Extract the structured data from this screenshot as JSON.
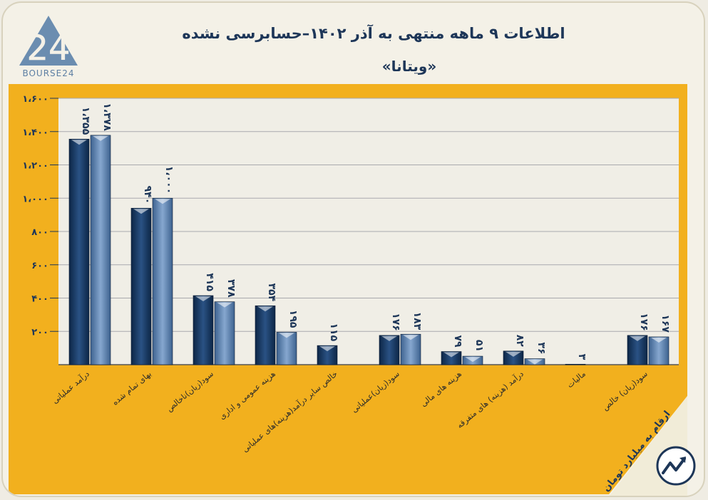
{
  "header": {
    "title": "اطلاعات ۹ ماهه منتهی به آذر ۱۴۰۲–حسابرسی نشده",
    "subtitle": "«ویتانا»"
  },
  "brand": {
    "logo_digits": "24",
    "logo_text": "BOURSE24"
  },
  "footer": {
    "note": "ارقام به میلیارد تومان"
  },
  "colors": {
    "frame": "#f2b01e",
    "plot_bg": "#f0eee6",
    "series_dark": "#1c3c66",
    "series_light": "#6a8fbd",
    "title": "#1d3658",
    "logo": "#5d7fa3"
  },
  "chart_data": {
    "type": "bar",
    "ylim": [
      0,
      1600
    ],
    "yticks": [
      200,
      400,
      600,
      800,
      1000,
      1200,
      1400,
      1600
    ],
    "ytick_labels": [
      "۲۰۰",
      "۴۰۰",
      "۶۰۰",
      "۸۰۰",
      "۱،۰۰۰",
      "۱،۲۰۰",
      "۱،۴۰۰",
      "۱،۶۰۰"
    ],
    "grid": true,
    "categories": [
      "درآمد عملیاتی",
      "بهای تمام شده",
      "سود(زیان)ناخالص",
      "هزینه عمومی و اداری",
      "خالص سایر درآمد(هزینه)های عملیاتی",
      "سود(زیان)عملیاتی",
      "هزینه های مالی",
      "درآمد (هزینه) های متفرقه",
      "مالیات",
      "سود(زیان) خالص"
    ],
    "series": [
      {
        "values": [
          1355,
          940,
          415,
          354,
          115,
          176,
          79,
          82,
          3,
          176
        ],
        "labels": [
          "۱،۳۵۵",
          "۹۴۰",
          "۴۱۵",
          "۳۵۴",
          "۱۱۵",
          "۱۷۶",
          "۷۹",
          "۸۲",
          "۳",
          "۱۷۶"
        ]
      },
      {
        "values": [
          1378,
          1000,
          378,
          195,
          null,
          183,
          51,
          36,
          null,
          167
        ],
        "labels": [
          "۱،۳۷۸",
          "۱،۰۰۰",
          "۳۷۸",
          "۱۹۵",
          null,
          "۱۸۳",
          "۵۱",
          "۳۶",
          null,
          "۱۶۷"
        ]
      }
    ]
  }
}
